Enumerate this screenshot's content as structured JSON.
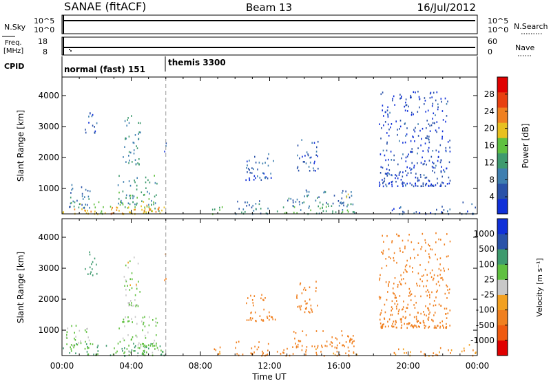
{
  "header": {
    "station": "SANAE (fitACF)",
    "beam": "Beam 13",
    "date": "16/Jul/2012"
  },
  "status_panels": {
    "nsky": {
      "label": "N.Sky",
      "ticks": [
        "10^5",
        "10^0"
      ]
    },
    "nsearch": {
      "label": "N.Search",
      "ticks": [
        "10^5",
        "10^0"
      ]
    },
    "freq": {
      "label_line1": "Freq.",
      "label_line2": "[MHz]",
      "ticks": [
        "18",
        "8"
      ]
    },
    "nave": {
      "label": "Nave",
      "ticks": [
        "60",
        "0"
      ]
    },
    "cpid": {
      "label": "CPID",
      "segments": [
        {
          "start_hour": 0,
          "label": "normal (fast) 151"
        },
        {
          "start_hour": 6,
          "label": "themis 3300"
        }
      ]
    }
  },
  "colors": {
    "power": [
      "#1030d8",
      "#2a52a8",
      "#3f7fb0",
      "#3e9a6e",
      "#60c040",
      "#e8c020",
      "#f08020",
      "#e84010",
      "#e00000"
    ],
    "velocity": [
      "#e00000",
      "#ef5a10",
      "#f08020",
      "#f2a020",
      "#c8c8c8",
      "#60c040",
      "#3e9a6e",
      "#2a52a8",
      "#1030d8"
    ]
  },
  "chart_data": [
    {
      "type": "heatmap",
      "name": "power",
      "xlabel": "Time UT",
      "ylabel": "Slant Range [km]",
      "xlim": [
        0,
        24
      ],
      "ylim": [
        180,
        4600
      ],
      "yticks": [
        1000,
        2000,
        3000,
        4000
      ],
      "colorbar": {
        "label": "Power [dB]",
        "ticks": [
          4,
          8,
          12,
          16,
          20,
          24,
          28
        ],
        "range": [
          0,
          32
        ]
      },
      "echo_regions": [
        {
          "t": [
            0.0,
            5.9
          ],
          "r": [
            200,
            600
          ],
          "v": 18
        },
        {
          "t": [
            0.1,
            1.6
          ],
          "r": [
            400,
            1200
          ],
          "v": 8
        },
        {
          "t": [
            2.8,
            5.6
          ],
          "r": [
            200,
            500
          ],
          "v": 22
        },
        {
          "t": [
            3.2,
            5.5
          ],
          "r": [
            500,
            1500
          ],
          "v": 12
        },
        {
          "t": [
            1.3,
            2.0
          ],
          "r": [
            2800,
            3600
          ],
          "v": 6
        },
        {
          "t": [
            3.5,
            4.5
          ],
          "r": [
            1800,
            3400
          ],
          "v": 10
        },
        {
          "t": [
            5.9,
            6.0
          ],
          "r": [
            2200,
            3600
          ],
          "v": 6
        },
        {
          "t": [
            8.5,
            9.3
          ],
          "r": [
            200,
            500
          ],
          "v": 14
        },
        {
          "t": [
            10.0,
            12.0
          ],
          "r": [
            200,
            700
          ],
          "v": 10
        },
        {
          "t": [
            10.6,
            12.3
          ],
          "r": [
            1300,
            2200
          ],
          "v": 6
        },
        {
          "t": [
            13.5,
            14.8
          ],
          "r": [
            1600,
            2600
          ],
          "v": 6
        },
        {
          "t": [
            12.4,
            17.2
          ],
          "r": [
            200,
            450
          ],
          "v": 14
        },
        {
          "t": [
            13.0,
            16.9
          ],
          "r": [
            450,
            1000
          ],
          "v": 8
        },
        {
          "t": [
            16.4,
            16.9
          ],
          "r": [
            500,
            900
          ],
          "v": 16
        },
        {
          "t": [
            19.0,
            22.5
          ],
          "r": [
            200,
            450
          ],
          "v": 6
        },
        {
          "t": [
            18.3,
            22.4
          ],
          "r": [
            1100,
            4200
          ],
          "v": 4
        },
        {
          "t": [
            23.0,
            23.9
          ],
          "r": [
            200,
            600
          ],
          "v": 6
        }
      ]
    },
    {
      "type": "heatmap",
      "name": "velocity",
      "xlabel": "Time UT",
      "ylabel": "Slant Range [km]",
      "xlim": [
        0,
        24
      ],
      "ylim": [
        180,
        4600
      ],
      "yticks": [
        1000,
        2000,
        3000,
        4000
      ],
      "xticks": [
        "00:00",
        "04:00",
        "08:00",
        "12:00",
        "16:00",
        "20:00",
        "00:00"
      ],
      "colorbar": {
        "label": "Velocity [m s⁻¹]",
        "ticks": [
          1000,
          500,
          100,
          25,
          -25,
          -100,
          -500,
          -1000
        ]
      },
      "echo_regions": [
        {
          "t": [
            0.0,
            5.9
          ],
          "r": [
            200,
            600
          ],
          "v": 100
        },
        {
          "t": [
            0.1,
            1.6
          ],
          "r": [
            400,
            1200
          ],
          "v": 50
        },
        {
          "t": [
            2.8,
            5.6
          ],
          "r": [
            200,
            500
          ],
          "v": 60
        },
        {
          "t": [
            3.2,
            5.5
          ],
          "r": [
            500,
            1500
          ],
          "v": 40
        },
        {
          "t": [
            1.3,
            2.0
          ],
          "r": [
            2800,
            3600
          ],
          "v": 400
        },
        {
          "t": [
            3.5,
            4.5
          ],
          "r": [
            1800,
            3400
          ],
          "v": 30
        },
        {
          "t": [
            5.9,
            6.0
          ],
          "r": [
            2200,
            3600
          ],
          "v": -150
        },
        {
          "t": [
            8.5,
            9.3
          ],
          "r": [
            200,
            500
          ],
          "v": -150
        },
        {
          "t": [
            10.0,
            12.0
          ],
          "r": [
            200,
            700
          ],
          "v": -200
        },
        {
          "t": [
            10.6,
            12.3
          ],
          "r": [
            1300,
            2200
          ],
          "v": -300
        },
        {
          "t": [
            13.5,
            14.8
          ],
          "r": [
            1600,
            2600
          ],
          "v": -300
        },
        {
          "t": [
            12.4,
            17.2
          ],
          "r": [
            200,
            450
          ],
          "v": -150
        },
        {
          "t": [
            13.0,
            16.9
          ],
          "r": [
            450,
            1000
          ],
          "v": -200
        },
        {
          "t": [
            16.4,
            16.9
          ],
          "r": [
            500,
            900
          ],
          "v": -300
        },
        {
          "t": [
            19.0,
            22.5
          ],
          "r": [
            200,
            450
          ],
          "v": -120
        },
        {
          "t": [
            18.3,
            22.4
          ],
          "r": [
            1100,
            4200
          ],
          "v": -200
        },
        {
          "t": [
            23.0,
            23.9
          ],
          "r": [
            200,
            600
          ],
          "v": -100
        }
      ]
    }
  ]
}
